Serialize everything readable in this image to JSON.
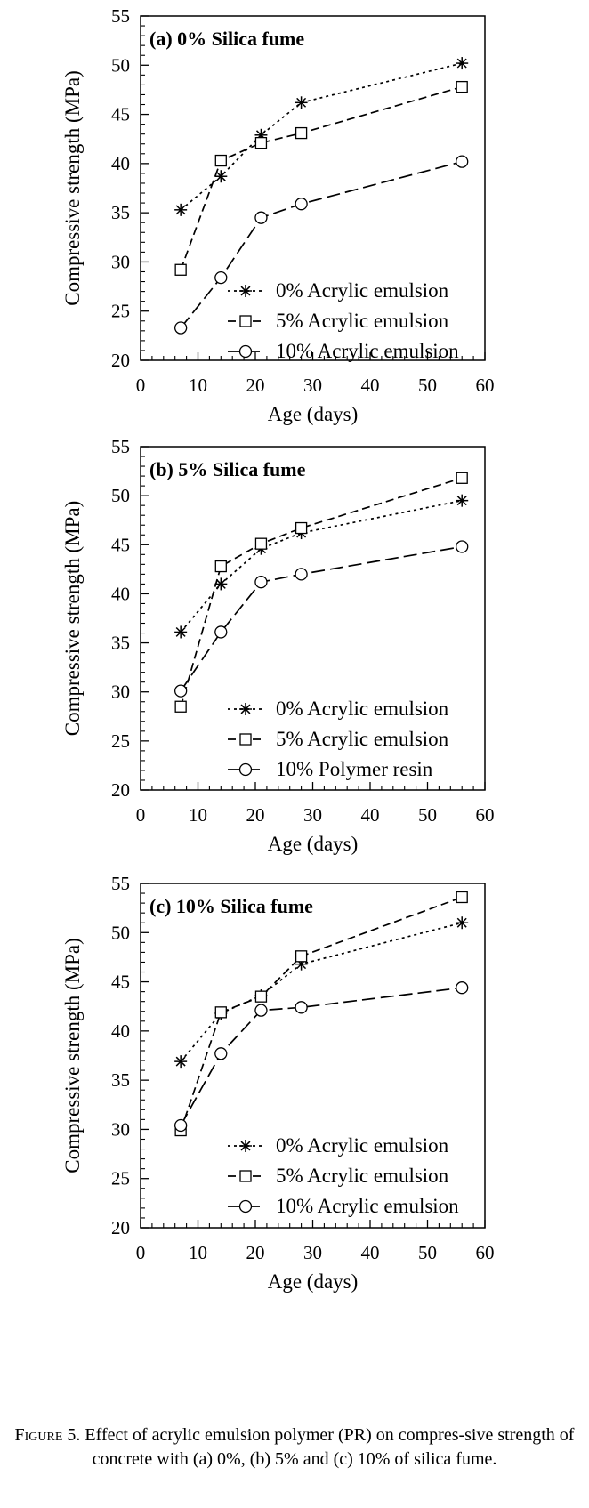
{
  "chart_data": [
    {
      "type": "line",
      "panel_label": "(a) 0% Silica fume",
      "xlabel": "Age (days)",
      "ylabel": "Compressive strength (MPa)",
      "xlim": [
        0,
        60
      ],
      "ylim": [
        20,
        55
      ],
      "x_ticks": [
        "0",
        "10",
        "20",
        "30",
        "40",
        "50",
        "60"
      ],
      "y_ticks": [
        "20",
        "25",
        "30",
        "35",
        "40",
        "45",
        "50",
        "55"
      ],
      "grid": false,
      "legend_position": "bottom-right",
      "series": [
        {
          "name": "0% Acrylic emulsion",
          "marker": "asterisk",
          "dash": "dotted",
          "x": [
            7,
            14,
            21,
            28,
            56
          ],
          "y": [
            35.3,
            38.7,
            42.9,
            46.2,
            50.2
          ]
        },
        {
          "name": "5% Acrylic emulsion",
          "marker": "square",
          "dash": "dashed",
          "x": [
            7,
            14,
            21,
            28,
            56
          ],
          "y": [
            29.2,
            40.3,
            42.1,
            43.1,
            47.8
          ]
        },
        {
          "name": "10% Acrylic emulsion",
          "marker": "circle",
          "dash": "longdash",
          "x": [
            7,
            14,
            21,
            28,
            56
          ],
          "y": [
            23.3,
            28.4,
            34.5,
            35.9,
            40.2
          ]
        }
      ]
    },
    {
      "type": "line",
      "panel_label": "(b) 5% Silica fume",
      "xlabel": "Age (days)",
      "ylabel": "Compressive strength (MPa)",
      "xlim": [
        0,
        60
      ],
      "ylim": [
        20,
        55
      ],
      "x_ticks": [
        "0",
        "10",
        "20",
        "30",
        "40",
        "50",
        "60"
      ],
      "y_ticks": [
        "20",
        "25",
        "30",
        "35",
        "40",
        "45",
        "50",
        "55"
      ],
      "grid": false,
      "legend_position": "bottom-right",
      "series": [
        {
          "name": "0% Acrylic emulsion",
          "marker": "asterisk",
          "dash": "dotted",
          "x": [
            7,
            14,
            21,
            28,
            56
          ],
          "y": [
            36.1,
            41.0,
            44.6,
            46.2,
            49.5
          ]
        },
        {
          "name": "5% Acrylic emulsion",
          "marker": "square",
          "dash": "dashed",
          "x": [
            7,
            14,
            21,
            28,
            56
          ],
          "y": [
            28.5,
            42.8,
            45.1,
            46.7,
            51.8
          ]
        },
        {
          "name": "10% Polymer resin",
          "marker": "circle",
          "dash": "longdash",
          "x": [
            7,
            14,
            21,
            28,
            56
          ],
          "y": [
            30.1,
            36.1,
            41.2,
            42.0,
            44.8
          ]
        }
      ]
    },
    {
      "type": "line",
      "panel_label": "(c) 10% Silica fume",
      "xlabel": "Age (days)",
      "ylabel": "Compressive strength (MPa)",
      "xlim": [
        0,
        60
      ],
      "ylim": [
        20,
        55
      ],
      "x_ticks": [
        "0",
        "10",
        "20",
        "30",
        "40",
        "50",
        "60"
      ],
      "y_ticks": [
        "20",
        "25",
        "30",
        "35",
        "40",
        "45",
        "50",
        "55"
      ],
      "grid": false,
      "legend_position": "bottom-right",
      "series": [
        {
          "name": "0% Acrylic emulsion",
          "marker": "asterisk",
          "dash": "dotted",
          "x": [
            7,
            14,
            21,
            28,
            56
          ],
          "y": [
            36.9,
            41.8,
            43.6,
            46.8,
            51.0
          ]
        },
        {
          "name": "5% Acrylic emulsion",
          "marker": "square",
          "dash": "dashed",
          "x": [
            7,
            14,
            21,
            28,
            56
          ],
          "y": [
            29.9,
            41.9,
            43.5,
            47.6,
            53.6
          ]
        },
        {
          "name": "10% Acrylic emulsion",
          "marker": "circle",
          "dash": "longdash",
          "x": [
            7,
            14,
            21,
            28,
            56
          ],
          "y": [
            30.4,
            37.7,
            42.1,
            42.4,
            44.4
          ]
        }
      ]
    }
  ],
  "caption": {
    "label": "Figure 5.",
    "text": "Effect of acrylic emulsion polymer (PR) on compres-sive strength of concrete with (a) 0%, (b) 5% and (c) 10% of silica fume."
  }
}
